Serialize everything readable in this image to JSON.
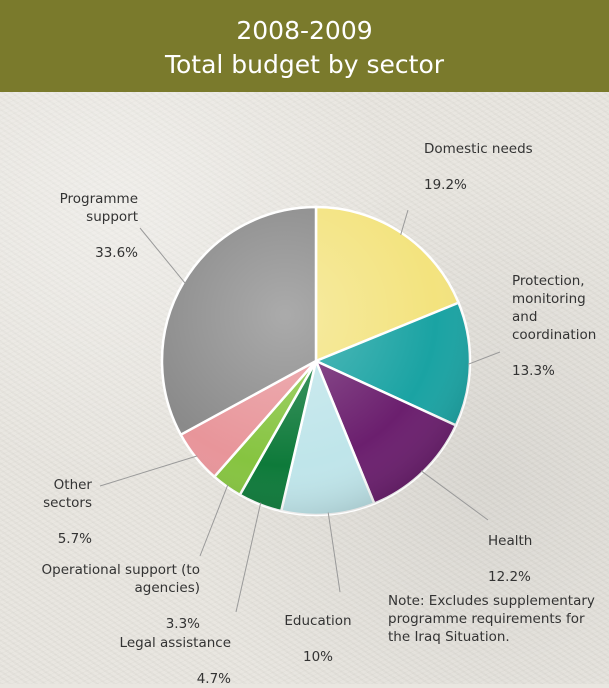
{
  "header": {
    "line1": "2008-2009",
    "line2": "Total budget by sector"
  },
  "note": "Note: Excludes supplementary programme requirements for the Iraq Situation.",
  "chart_data": {
    "type": "pie",
    "title": "2008-2009 Total budget by sector",
    "slices": [
      {
        "label": "Domestic needs",
        "value": 19.2,
        "value_label": "19.2%",
        "color": "#f3e37e"
      },
      {
        "label": "Protection, monitoring and coordination",
        "value": 13.3,
        "value_label": "13.3%",
        "color": "#1aa3a3"
      },
      {
        "label": "Health",
        "value": 12.2,
        "value_label": "12.2%",
        "color": "#6b1f6e"
      },
      {
        "label": "Education",
        "value": 10,
        "value_label": "10%",
        "color": "#bfe5ea"
      },
      {
        "label": "Legal assistance",
        "value": 4.7,
        "value_label": "4.7%",
        "color": "#0e7a3a"
      },
      {
        "label": "Operational support (to agencies)",
        "value": 3.3,
        "value_label": "3.3%",
        "color": "#86c440"
      },
      {
        "label": "Other sectors",
        "value": 5.7,
        "value_label": "5.7%",
        "color": "#e8959a"
      },
      {
        "label": "Programme support",
        "value": 33.6,
        "value_label": "33.6%",
        "color": "#8a8a8a"
      }
    ]
  }
}
